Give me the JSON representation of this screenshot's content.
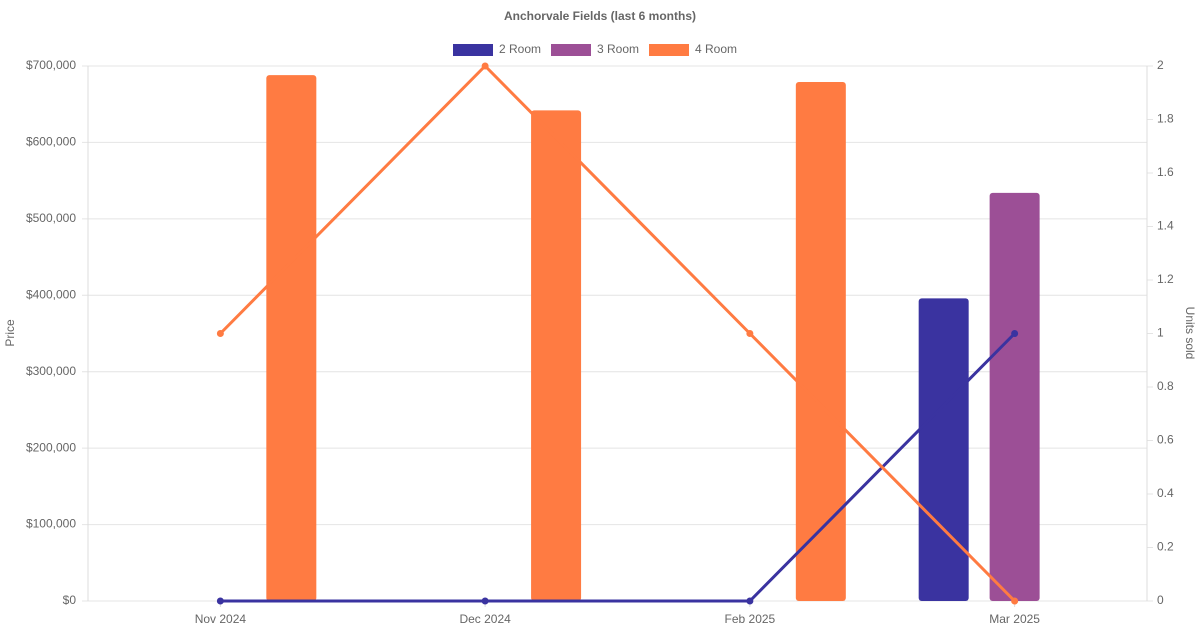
{
  "chart_data": {
    "type": "bar",
    "title": "Anchorvale Fields (last 6 months)",
    "y_label": "Price",
    "y2_label": "Units sold",
    "categories": [
      "Nov 2024",
      "Dec 2024",
      "Feb 2025",
      "Mar 2025"
    ],
    "series": [
      {
        "name": "2 Room",
        "type": "bar",
        "color": "#3a33a0",
        "values": [
          null,
          null,
          null,
          396000
        ]
      },
      {
        "name": "3 Room",
        "type": "bar",
        "color": "#9c4f96",
        "values": [
          null,
          null,
          null,
          534000
        ]
      },
      {
        "name": "4 Room",
        "type": "bar",
        "color": "#ff7b42",
        "values": [
          688000,
          642000,
          679000,
          null
        ]
      },
      {
        "type": "line",
        "axis": "y2",
        "color": "#3a33a0",
        "values": [
          0,
          0,
          0,
          1
        ]
      },
      {
        "type": "line",
        "axis": "y2",
        "color": "#ff7b42",
        "values": [
          1,
          2,
          1,
          0
        ]
      }
    ],
    "ylim": [
      0,
      700000
    ],
    "yticks": [
      {
        "value": 0,
        "label": "$0"
      },
      {
        "value": 100000,
        "label": "$100,000"
      },
      {
        "value": 200000,
        "label": "$200,000"
      },
      {
        "value": 300000,
        "label": "$300,000"
      },
      {
        "value": 400000,
        "label": "$400,000"
      },
      {
        "value": 500000,
        "label": "$500,000"
      },
      {
        "value": 600000,
        "label": "$600,000"
      },
      {
        "value": 700000,
        "label": "$700,000"
      }
    ],
    "y2lim": [
      0,
      2
    ],
    "y2ticks": [
      0,
      0.2,
      0.4,
      0.6,
      0.8,
      1,
      1.2,
      1.4,
      1.6,
      1.8,
      2
    ],
    "grid": true,
    "legend": "top"
  }
}
